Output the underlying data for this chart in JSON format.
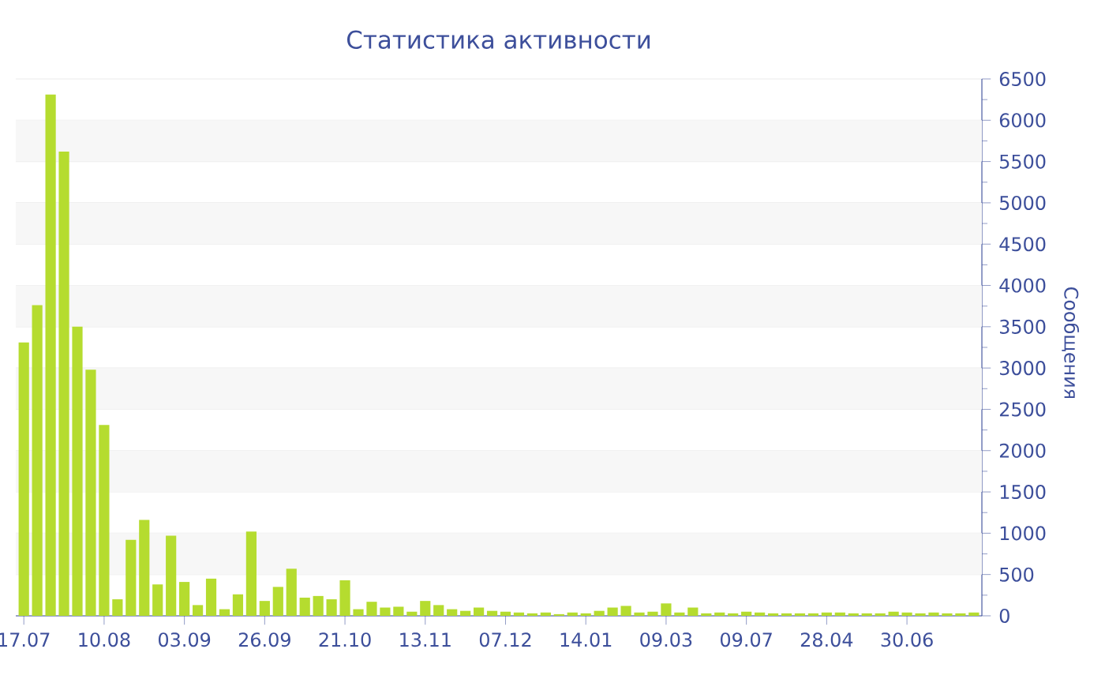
{
  "chart_data": {
    "type": "bar",
    "title": "Статистика активности",
    "ylabel": "Сообщения",
    "categories": [
      "17.07",
      null,
      null,
      null,
      null,
      null,
      "10.08",
      null,
      null,
      null,
      null,
      null,
      "03.09",
      null,
      null,
      null,
      null,
      null,
      "26.09",
      null,
      null,
      null,
      null,
      null,
      "21.10",
      null,
      null,
      null,
      null,
      null,
      "13.11",
      null,
      null,
      null,
      null,
      null,
      "07.12",
      null,
      null,
      null,
      null,
      null,
      "14.01",
      null,
      null,
      null,
      null,
      null,
      "09.03",
      null,
      null,
      null,
      null,
      null,
      "09.07",
      null,
      null,
      null,
      null,
      null,
      "28.04",
      null,
      null,
      null,
      null,
      null,
      "30.06",
      null,
      null,
      null,
      null,
      null
    ],
    "values": [
      3310,
      3760,
      6310,
      5620,
      3500,
      2980,
      2310,
      200,
      920,
      1160,
      380,
      970,
      410,
      130,
      450,
      80,
      260,
      1020,
      180,
      350,
      570,
      220,
      240,
      200,
      430,
      80,
      170,
      100,
      110,
      50,
      180,
      130,
      80,
      60,
      100,
      60,
      50,
      40,
      30,
      40,
      20,
      40,
      30,
      60,
      100,
      120,
      40,
      50,
      150,
      40,
      100,
      30,
      40,
      30,
      50,
      40,
      30,
      30,
      30,
      30,
      40,
      40,
      30,
      30,
      30,
      50,
      40,
      30,
      40,
      30,
      30,
      40
    ],
    "color": "#b5dc2f",
    "ylim": [
      0,
      6500
    ],
    "yticks": [
      0,
      500,
      1000,
      1500,
      2000,
      2500,
      3000,
      3500,
      4000,
      4500,
      5000,
      5500,
      6000,
      6500
    ],
    "grid": "y"
  }
}
